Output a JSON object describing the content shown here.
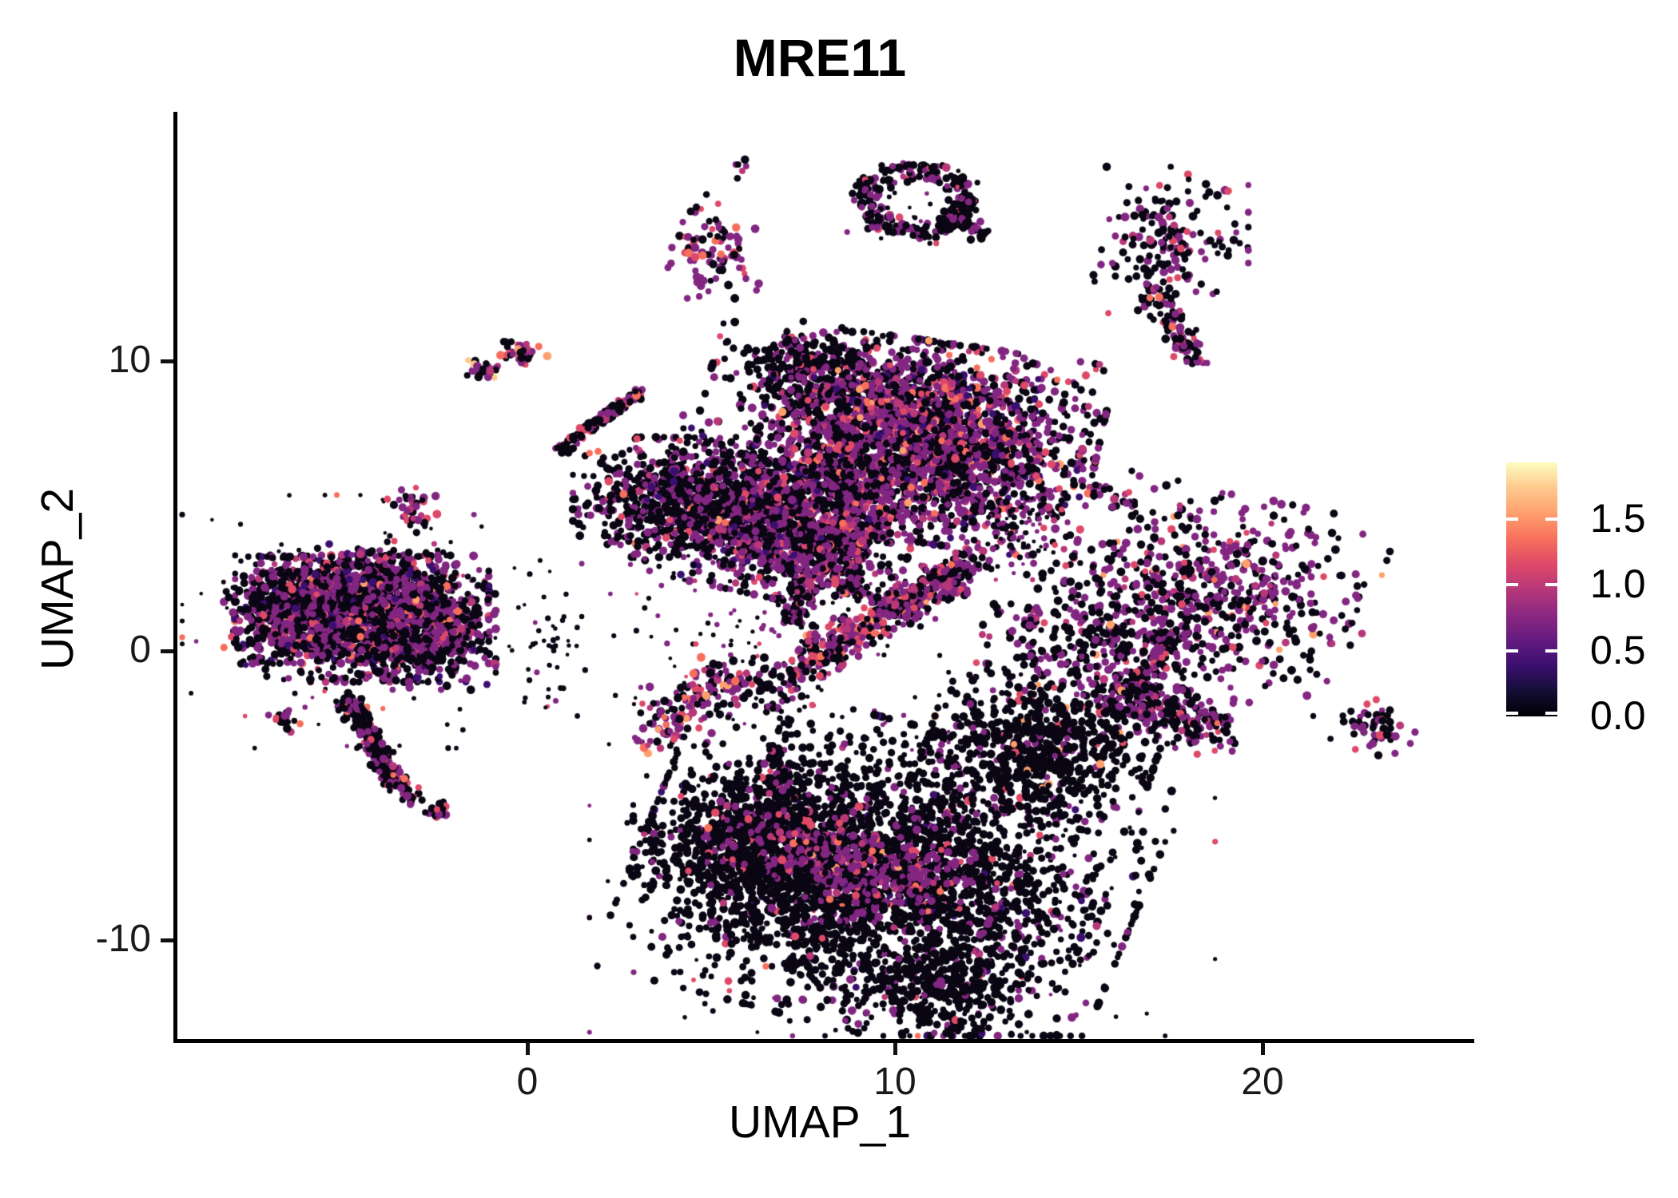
{
  "chart_data": {
    "type": "scatter",
    "title": "MRE11",
    "xlabel": "UMAP_1",
    "ylabel": "UMAP_2",
    "x_ticks": [
      {
        "label": "0",
        "value": 0
      },
      {
        "label": "10",
        "value": 10
      },
      {
        "label": "20",
        "value": 20
      }
    ],
    "y_ticks": [
      {
        "label": "10",
        "value": 10
      },
      {
        "label": "0",
        "value": 0
      },
      {
        "label": "-10",
        "value": -10
      }
    ],
    "xlim": [
      -9.6,
      25.7
    ],
    "ylim": [
      -13.6,
      18.6
    ],
    "grid": false,
    "legend_position": "right",
    "colorbar": {
      "title": "",
      "value_min": 0.0,
      "value_max": 1.93,
      "ticks": [
        {
          "label": "1.5",
          "value": 1.5
        },
        {
          "label": "1.0",
          "value": 1.0
        },
        {
          "label": "0.5",
          "value": 0.5
        },
        {
          "label": "0.0",
          "value": 0.0
        }
      ],
      "colormap": "magma",
      "gradient_bottom_to_top": [
        "#000004",
        "#140E36",
        "#3B0F70",
        "#641A80",
        "#8C2981",
        "#B73779",
        "#DE4968",
        "#F7705C",
        "#FE9F6D",
        "#FEC98D",
        "#FCFDBF"
      ]
    },
    "palette": {
      "k": "#0A0613",
      "dp": "#3B0F70",
      "p": "#822681",
      "m": "#B73779",
      "pk": "#DE4968",
      "s": "#F76F5C",
      "o": "#FE9F6D",
      "pe": "#FEC98D",
      "y": "#FCFDBF"
    },
    "mixes": {
      "A": {
        "k": 0.5,
        "dp": 0.05,
        "p": 0.34,
        "m": 0.05,
        "pk": 0.04,
        "s": 0.015,
        "o": 0.005
      },
      "tailL": {
        "k": 0.68,
        "p": 0.22,
        "m": 0.03,
        "pk": 0.05,
        "s": 0.02
      },
      "tiny": {
        "k": 0.45,
        "p": 0.3,
        "m": 0.05,
        "pk": 0.15,
        "s": 0.05
      },
      "pair": {
        "k": 0.4,
        "p": 0.28,
        "m": 0.05,
        "pk": 0.1,
        "s": 0.07,
        "o": 0.05,
        "pe": 0.03,
        "y": 0.02
      },
      "strand": {
        "k": 0.6,
        "p": 0.26,
        "m": 0.04,
        "pk": 0.08,
        "s": 0.02
      },
      "m1": {
        "k": 0.5,
        "p": 0.33,
        "m": 0.05,
        "pk": 0.1,
        "s": 0.02
      },
      "t1": {
        "k": 0.25,
        "p": 0.45,
        "m": 0.15,
        "pk": 0.15
      },
      "t2": {
        "k": 0.3,
        "p": 0.42,
        "m": 0.1,
        "pk": 0.14,
        "s": 0.04
      },
      "hook": {
        "k": 0.7,
        "p": 0.24,
        "m": 0.03,
        "pk": 0.03
      },
      "rtop": {
        "k": 0.56,
        "p": 0.31,
        "m": 0.05,
        "pk": 0.06,
        "s": 0.02
      },
      "coreR": {
        "k": 0.41,
        "dp": 0.05,
        "p": 0.38,
        "m": 0.06,
        "pk": 0.07,
        "s": 0.02,
        "o": 0.01
      },
      "coreL": {
        "k": 0.5,
        "dp": 0.04,
        "p": 0.35,
        "m": 0.05,
        "pk": 0.04,
        "s": 0.015,
        "o": 0.005
      },
      "wing": {
        "k": 0.68,
        "p": 0.26,
        "m": 0.02,
        "pk": 0.03,
        "s": 0.01
      },
      "arm": {
        "k": 0.75,
        "p": 0.2,
        "m": 0.02,
        "pk": 0.03
      },
      "stream": {
        "k": 0.45,
        "p": 0.4,
        "m": 0.05,
        "pk": 0.07,
        "s": 0.03
      },
      "cband": {
        "k": 0.38,
        "p": 0.38,
        "m": 0.07,
        "pk": 0.11,
        "s": 0.04,
        "o": 0.02
      },
      "below": {
        "k": 0.62,
        "p": 0.26,
        "m": 0.03,
        "pk": 0.06,
        "s": 0.02,
        "o": 0.01
      },
      "blob860": {
        "k": 0.3,
        "p": 0.45,
        "m": 0.08,
        "pk": 0.1,
        "s": 0.04,
        "o": 0.03
      },
      "mini": {
        "k": 0.58,
        "p": 0.32,
        "pk": 0.1
      },
      "mrp": {
        "k": 0.46,
        "p": 0.38,
        "m": 0.06,
        "pk": 0.05,
        "s": 0.02,
        "o": 0.03
      },
      "mr2": {
        "k": 0.6,
        "p": 0.32,
        "m": 0.03,
        "pk": 0.04,
        "o": 0.01
      },
      "rb": {
        "k": 0.54,
        "p": 0.36,
        "m": 0.04,
        "pk": 0.04,
        "s": 0.01,
        "o": 0.01
      },
      "fr": {
        "k": 0.55,
        "p": 0.32,
        "m": 0.03,
        "pk": 0.1
      },
      "rs": {
        "k": 0.45,
        "p": 0.38,
        "m": 0.07,
        "pk": 0.1
      },
      "bmain": {
        "k": 0.87,
        "dp": 0.02,
        "p": 0.08,
        "m": 0.01,
        "pk": 0.015,
        "s": 0.005
      },
      "bleft": {
        "k": 0.9,
        "p": 0.06,
        "m": 0.01,
        "pk": 0.025,
        "s": 0.005
      },
      "bband": {
        "k": 0.3,
        "p": 0.54,
        "m": 0.06,
        "pk": 0.07,
        "s": 0.02,
        "o": 0.01
      },
      "bur": {
        "k": 0.915,
        "p": 0.055,
        "pk": 0.02,
        "o": 0.01
      },
      "btip": {
        "k": 0.93,
        "p": 0.06,
        "pk": 0.01
      },
      "bnoise": {
        "k": 0.85,
        "p": 0.12,
        "pk": 0.03
      },
      "lb": {
        "k": 0.85,
        "p": 0.12,
        "pk": 0.03
      }
    },
    "clusters": [
      {
        "name": "left-fringe",
        "type": "blob",
        "c": [
          -4.5,
          1.0
        ],
        "s": [
          2.6,
          1.9
        ],
        "n": 150,
        "mix": "tailL",
        "small": true
      },
      {
        "name": "left-core",
        "type": "blob",
        "c": [
          -4.5,
          1.1
        ],
        "s": [
          1.5,
          0.95
        ],
        "n": 1500,
        "mix": "A"
      },
      {
        "name": "left-lobe-west",
        "type": "blob",
        "c": [
          -6.3,
          1.4
        ],
        "s": [
          0.85,
          0.8
        ],
        "n": 450,
        "mix": "A"
      },
      {
        "name": "left-lobe-east",
        "type": "blob",
        "c": [
          -2.7,
          0.6
        ],
        "s": [
          0.8,
          0.85
        ],
        "n": 420,
        "mix": "A"
      },
      {
        "name": "left-lobe-top",
        "type": "blob",
        "c": [
          -4.0,
          2.4
        ],
        "s": [
          0.9,
          0.6
        ],
        "n": 280,
        "mix": "A"
      },
      {
        "name": "left-tail",
        "type": "strand",
        "p1": [
          -4.9,
          -1.6
        ],
        "p2": [
          -3.5,
          -4.7
        ],
        "w": 0.2,
        "n": 220,
        "mix": "tailL"
      },
      {
        "name": "left-tail-blob-1",
        "type": "blob",
        "c": [
          -3.2,
          -5.0
        ],
        "s": [
          0.18,
          0.15
        ],
        "n": 18,
        "mix": "tiny"
      },
      {
        "name": "left-tail-blob-2",
        "type": "blob",
        "c": [
          -2.45,
          -5.6
        ],
        "s": [
          0.2,
          0.17
        ],
        "n": 22,
        "mix": "tiny"
      },
      {
        "name": "left-side-blob",
        "type": "blob",
        "c": [
          -6.6,
          -2.4
        ],
        "s": [
          0.2,
          0.18
        ],
        "n": 20,
        "mix": "tiny"
      },
      {
        "name": "left-upper-blob",
        "type": "blob",
        "c": [
          -3.15,
          4.88
        ],
        "s": [
          0.3,
          0.35
        ],
        "n": 40,
        "mix": "t2"
      },
      {
        "name": "left-bridge",
        "type": "blob",
        "c": [
          0.5,
          0.2
        ],
        "s": [
          0.5,
          1.1
        ],
        "n": 40,
        "mix": "lb",
        "small": true
      },
      {
        "name": "west-pair-1",
        "type": "blob",
        "c": [
          -1.24,
          9.71
        ],
        "s": [
          0.25,
          0.2
        ],
        "n": 30,
        "mix": "pair"
      },
      {
        "name": "west-pair-2",
        "type": "blob",
        "c": [
          -0.17,
          10.29
        ],
        "s": [
          0.33,
          0.22
        ],
        "n": 40,
        "mix": "pair"
      },
      {
        "name": "diag-strand",
        "type": "strand",
        "p1": [
          0.87,
          6.92
        ],
        "p2": [
          3.04,
          8.94
        ],
        "w": 0.13,
        "n": 130,
        "mix": "strand"
      },
      {
        "name": "mid-small",
        "type": "blob",
        "c": [
          7.57,
          10.04
        ],
        "s": [
          0.75,
          0.35
        ],
        "n": 95,
        "mix": "m1"
      },
      {
        "name": "top-tiny",
        "type": "blob",
        "c": [
          5.8,
          16.6
        ],
        "s": [
          0.15,
          0.2
        ],
        "n": 7,
        "mix": "t1"
      },
      {
        "name": "top-small",
        "type": "blob",
        "c": [
          5.07,
          13.96
        ],
        "s": [
          0.62,
          0.78
        ],
        "n": 90,
        "mix": "t2"
      },
      {
        "name": "top-hook-ring",
        "type": "ring",
        "c": [
          10.54,
          15.56
        ],
        "R": [
          1.6,
          1.3
        ],
        "inner": 0.5,
        "n": 240,
        "mix": "hook"
      },
      {
        "name": "top-hook-inner",
        "type": "blob",
        "c": [
          10.54,
          15.56
        ],
        "s": [
          0.8,
          0.65
        ],
        "n": 25,
        "mix": "hook",
        "small": true
      },
      {
        "name": "top-hook-tail",
        "type": "strand",
        "p1": [
          11.3,
          15.0
        ],
        "p2": [
          12.55,
          14.3
        ],
        "w": 0.2,
        "n": 45,
        "mix": "hook"
      },
      {
        "name": "right-top",
        "type": "blob",
        "c": [
          17.43,
          14.18
        ],
        "s": [
          0.95,
          1.1
        ],
        "n": 170,
        "mix": "rtop"
      },
      {
        "name": "right-top-tail",
        "type": "strand",
        "p1": [
          17.0,
          12.7
        ],
        "p2": [
          18.2,
          9.9
        ],
        "w": 0.25,
        "n": 90,
        "mix": "rtop"
      },
      {
        "name": "center-arm",
        "type": "blob",
        "c": [
          8.3,
          9.2
        ],
        "s": [
          1.45,
          0.85
        ],
        "rot": -12,
        "n": 430,
        "mix": "arm"
      },
      {
        "name": "center-wing",
        "type": "blob",
        "c": [
          4.0,
          5.3
        ],
        "s": [
          1.2,
          0.9
        ],
        "n": 600,
        "mix": "wing"
      },
      {
        "name": "center-core-left",
        "type": "blob",
        "c": [
          6.9,
          4.6
        ],
        "s": [
          1.6,
          1.2
        ],
        "rot": -15,
        "n": 1500,
        "mix": "coreL"
      },
      {
        "name": "center-core-right",
        "type": "blob",
        "c": [
          10.9,
          7.2
        ],
        "s": [
          2.0,
          1.5
        ],
        "rot": -10,
        "n": 2400,
        "mix": "coreR"
      },
      {
        "name": "center-stream-1",
        "type": "strand",
        "p1": [
          8.7,
          7.4
        ],
        "p2": [
          8.9,
          1.8
        ],
        "w": 0.22,
        "n": 260,
        "mix": "stream"
      },
      {
        "name": "center-stream-2",
        "type": "strand",
        "p1": [
          8.04,
          3.7
        ],
        "p2": [
          7.17,
          0.94
        ],
        "w": 0.2,
        "n": 110,
        "mix": "stream"
      },
      {
        "name": "center-below",
        "type": "blob",
        "c": [
          6.4,
          1.2
        ],
        "s": [
          2.2,
          1.9
        ],
        "n": 180,
        "mix": "below",
        "small": true
      },
      {
        "name": "center-band",
        "type": "strand",
        "p1": [
          7.5,
          -0.39
        ],
        "p2": [
          12.07,
          3.01
        ],
        "w": 0.45,
        "n": 500,
        "mix": "cband"
      },
      {
        "name": "center-blob-1",
        "type": "blob",
        "c": [
          5.22,
          -1.27
        ],
        "s": [
          0.5,
          0.45
        ],
        "n": 70,
        "mix": "blob860"
      },
      {
        "name": "center-blob-2",
        "type": "blob",
        "c": [
          6.6,
          -1.2
        ],
        "s": [
          0.5,
          0.5
        ],
        "n": 60,
        "mix": "below"
      },
      {
        "name": "center-blob-3",
        "type": "blob",
        "c": [
          3.96,
          -2.5
        ],
        "s": [
          0.45,
          0.55
        ],
        "n": 70,
        "mix": "blob860"
      },
      {
        "name": "center-ministrand",
        "type": "strand",
        "p1": [
          6.74,
          -3.1
        ],
        "p2": [
          6.74,
          -5.1
        ],
        "w": 0.12,
        "n": 45,
        "mix": "mini"
      },
      {
        "name": "right-pair-1",
        "type": "blob",
        "c": [
          15.48,
          5.52
        ],
        "s": [
          0.16,
          0.13
        ],
        "n": 10,
        "mix": "rs"
      },
      {
        "name": "right-pair-2",
        "type": "blob",
        "c": [
          16.26,
          5.13
        ],
        "s": [
          0.22,
          0.16
        ],
        "n": 16,
        "mix": "rs"
      },
      {
        "name": "right-arc",
        "type": "blob",
        "c": [
          13.4,
          4.0
        ],
        "s": [
          0.55,
          0.75
        ],
        "n": 70,
        "mix": "mr2",
        "small": true
      },
      {
        "name": "midright-purple",
        "type": "blob",
        "c": [
          18.8,
          2.0
        ],
        "s": [
          1.8,
          1.5
        ],
        "rot": -15,
        "n": 580,
        "mix": "mrp"
      },
      {
        "name": "midright-tail",
        "type": "strand",
        "p1": [
          17.5,
          0.7
        ],
        "p2": [
          16.8,
          -1.2
        ],
        "w": 0.25,
        "n": 65,
        "mix": "mrp"
      },
      {
        "name": "midright-west",
        "type": "blob",
        "c": [
          15.3,
          0.2
        ],
        "s": [
          1.45,
          1.5
        ],
        "n": 390,
        "mix": "mr2"
      },
      {
        "name": "right-band",
        "type": "strand",
        "p1": [
          15.9,
          -1.5
        ],
        "p2": [
          19.0,
          -2.9
        ],
        "w": 0.5,
        "n": 240,
        "mix": "rb"
      },
      {
        "name": "far-right-blob",
        "type": "blob",
        "c": [
          23.0,
          -2.65
        ],
        "s": [
          0.5,
          0.42
        ],
        "n": 48,
        "mix": "fr"
      },
      {
        "name": "bottom-noise",
        "type": "blob",
        "c": [
          10.2,
          -7.5
        ],
        "s": [
          3.7,
          2.9
        ],
        "n": 260,
        "mix": "bnoise",
        "small": true
      },
      {
        "name": "bottom-main",
        "type": "blob",
        "c": [
          9.8,
          -7.9
        ],
        "s": [
          2.95,
          2.3
        ],
        "rot": -18,
        "n": 2700,
        "mix": "bmain"
      },
      {
        "name": "bottom-left",
        "type": "blob",
        "c": [
          6.1,
          -6.9
        ],
        "s": [
          1.4,
          1.3
        ],
        "n": 780,
        "mix": "bleft"
      },
      {
        "name": "bottom-upper-right",
        "type": "blob",
        "c": [
          14.0,
          -3.4
        ],
        "s": [
          1.35,
          1.05
        ],
        "rot": -15,
        "n": 650,
        "mix": "bur"
      },
      {
        "name": "bottom-purple-band",
        "type": "blob",
        "c": [
          8.9,
          -7.3
        ],
        "s": [
          1.8,
          0.8
        ],
        "rot": -20,
        "n": 450,
        "mix": "bband"
      },
      {
        "name": "bottom-tip",
        "type": "blob",
        "c": [
          11.3,
          -11.6
        ],
        "s": [
          0.9,
          0.7
        ],
        "n": 220,
        "mix": "btip"
      }
    ],
    "point_radius_px": [
      3.6,
      5.5
    ]
  }
}
